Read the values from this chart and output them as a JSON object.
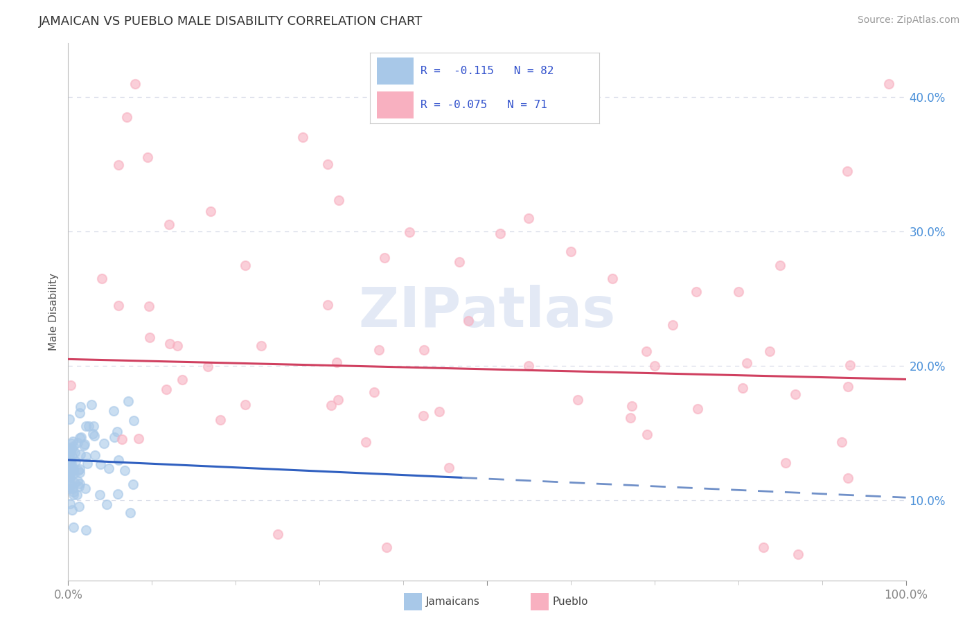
{
  "title": "JAMAICAN VS PUEBLO MALE DISABILITY CORRELATION CHART",
  "source": "Source: ZipAtlas.com",
  "ylabel": "Male Disability",
  "watermark": "ZIPatlas",
  "jamaican_R": -0.115,
  "jamaican_N": 82,
  "pueblo_R": -0.075,
  "pueblo_N": 71,
  "jamaican_color": "#a8c8e8",
  "pueblo_color": "#f8b0c0",
  "jamaican_line_color": "#3060c0",
  "pueblo_line_color": "#d04060",
  "jamaican_dash_color": "#7090c8",
  "background_color": "#ffffff",
  "grid_color": "#d8dce8",
  "title_color": "#333333",
  "axis_color": "#bbbbbb",
  "tick_color": "#888888",
  "ytick_color": "#4a90d9",
  "legend_R_color": "#3050cc",
  "ylim_min": 0.04,
  "ylim_max": 0.44,
  "xlim_min": 0.0,
  "xlim_max": 1.0
}
